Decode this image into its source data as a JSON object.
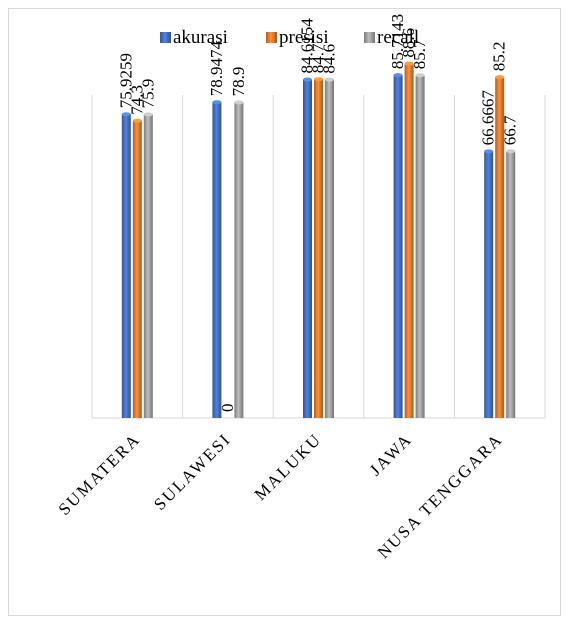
{
  "chart_data": {
    "type": "bar",
    "categories": [
      "SUMATERA",
      "SULAWESI",
      "MALUKU",
      "JAWA",
      "NUSA TENGGARA"
    ],
    "series": [
      {
        "name": "akurasi",
        "color": "#4472c4",
        "values": [
          75.9259,
          78.9474,
          84.6154,
          85.7143,
          66.6667
        ],
        "labels": [
          "75.9259",
          "78.9474",
          "84.6154",
          "85.7143",
          "66.6667"
        ]
      },
      {
        "name": "presisi",
        "color": "#ed7d31",
        "values": [
          74.3,
          0,
          84.7,
          88.6,
          85.2
        ],
        "labels": [
          "74.3",
          "0",
          "84.7",
          "88.6",
          "85.2"
        ]
      },
      {
        "name": "recall",
        "color": "#a5a5a5",
        "values": [
          75.9,
          78.9,
          84.6,
          85.7,
          66.7
        ],
        "labels": [
          "75.9",
          "78.9",
          "84.6",
          "85.7",
          "66.7"
        ]
      }
    ],
    "ylim": [
      0,
      100
    ],
    "legend": "top-center",
    "grid": "vertical-category-lines",
    "title": "",
    "xlabel": "",
    "ylabel": ""
  }
}
